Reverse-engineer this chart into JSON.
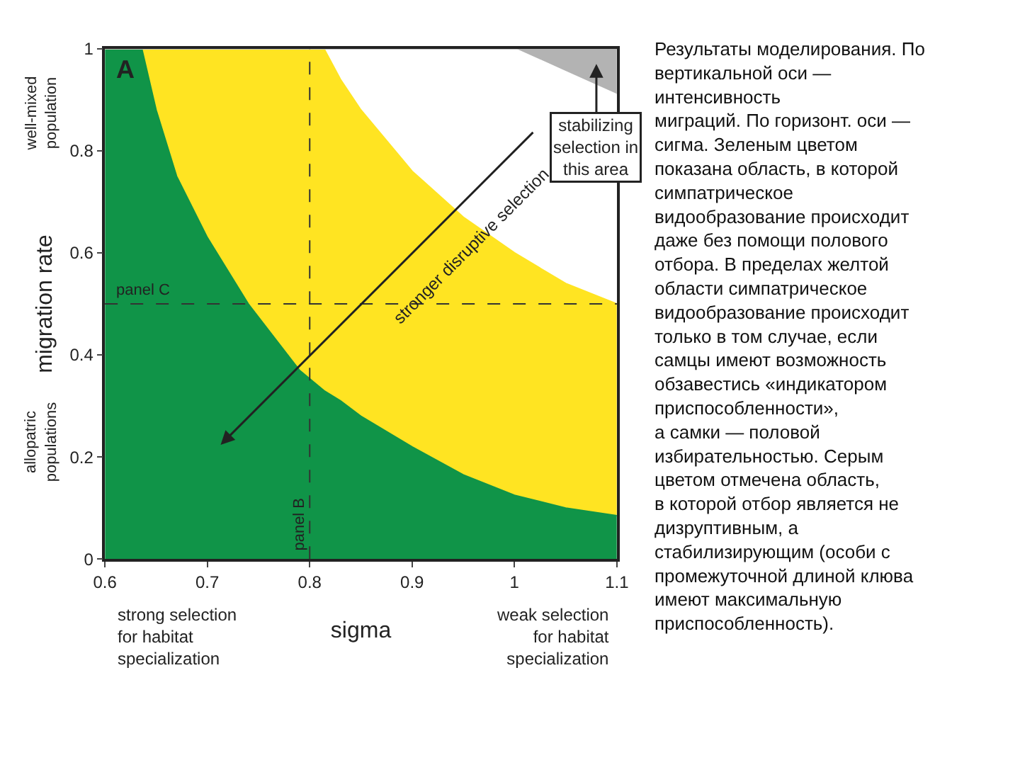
{
  "chart_data": {
    "type": "area",
    "xlabel": "sigma",
    "ylabel": "migration rate",
    "x": [
      0.6,
      0.636,
      0.65,
      0.67,
      0.7,
      0.74,
      0.79,
      0.814,
      0.83,
      0.85,
      0.9,
      0.95,
      1.0,
      1.05,
      1.1
    ],
    "series": [
      {
        "color": "#109448",
        "values": [
          1,
          1,
          0.88,
          0.75,
          0.63,
          0.5,
          0.37,
          0.33,
          0.31,
          0.28,
          0.22,
          0.165,
          0.125,
          0.1,
          0.085
        ]
      },
      {
        "color": "#ffe422",
        "values": [
          0,
          0,
          0.12,
          0.25,
          0.37,
          0.5,
          0.63,
          0.67,
          0.63,
          0.6,
          0.54,
          0.505,
          0.475,
          0.44,
          0.415
        ]
      },
      {
        "color": "#ffffff",
        "values": [
          0,
          0,
          0,
          0,
          0,
          0,
          0,
          0,
          0.06,
          0.12,
          0.24,
          0.33,
          0.4,
          0.415,
          0.41
        ]
      },
      {
        "color": "#b3b3b3",
        "values": [
          0,
          0,
          0,
          0,
          0,
          0,
          0,
          0,
          0,
          0,
          0,
          0,
          0,
          0.045,
          0.09
        ]
      }
    ],
    "stacked": true,
    "xlim": [
      0.6,
      1.1
    ],
    "ylim": [
      0,
      1
    ],
    "xticks": [
      0.6,
      0.7,
      0.8,
      0.9,
      1,
      1.1
    ],
    "yticks": [
      0,
      0.2,
      0.4,
      0.6,
      0.8,
      1
    ],
    "ref_lines": [
      {
        "axis": "y",
        "value": 0.5,
        "label": "panel C",
        "color": "#333333",
        "line_style": "dashed"
      },
      {
        "axis": "x",
        "value": 0.8,
        "label": "panel B",
        "color": "#333333",
        "line_style": "dashed"
      }
    ],
    "annotations": [
      "A",
      "stronger disruptive selection",
      "stabilizing\nselection in\nthis area",
      "well-mixed\npopulation",
      "allopatric\npopulations",
      "strong selection\nfor habitat\nspecialization",
      "weak selection\nfor habitat\nspecialization",
      "Результаты моделирования. По\nвертикальной оси —\nинтенсивность\nмиграций. По горизонт. оси —\nсигма. Зеленым цветом\nпоказана область, в которой\nсимпатрическое\nвидообразование происходит\nдаже без помощи полового\nотбора. В пределах желтой\nобласти симпатрическое\nвидообразование происходит\nтолько в том случае, если\nсамцы имеют возможность\nобзавестись «индикатором\nприспособленности»,\nа самки — половой\nизбирательностью. Серым\nцветом отмечена область,\nв которой отбор является не\nдизруптивным, а\nстабилизирующим (особи с\nпромежуточной длиной клюва\nимеют максимальную\nприспособленность)."
    ]
  }
}
